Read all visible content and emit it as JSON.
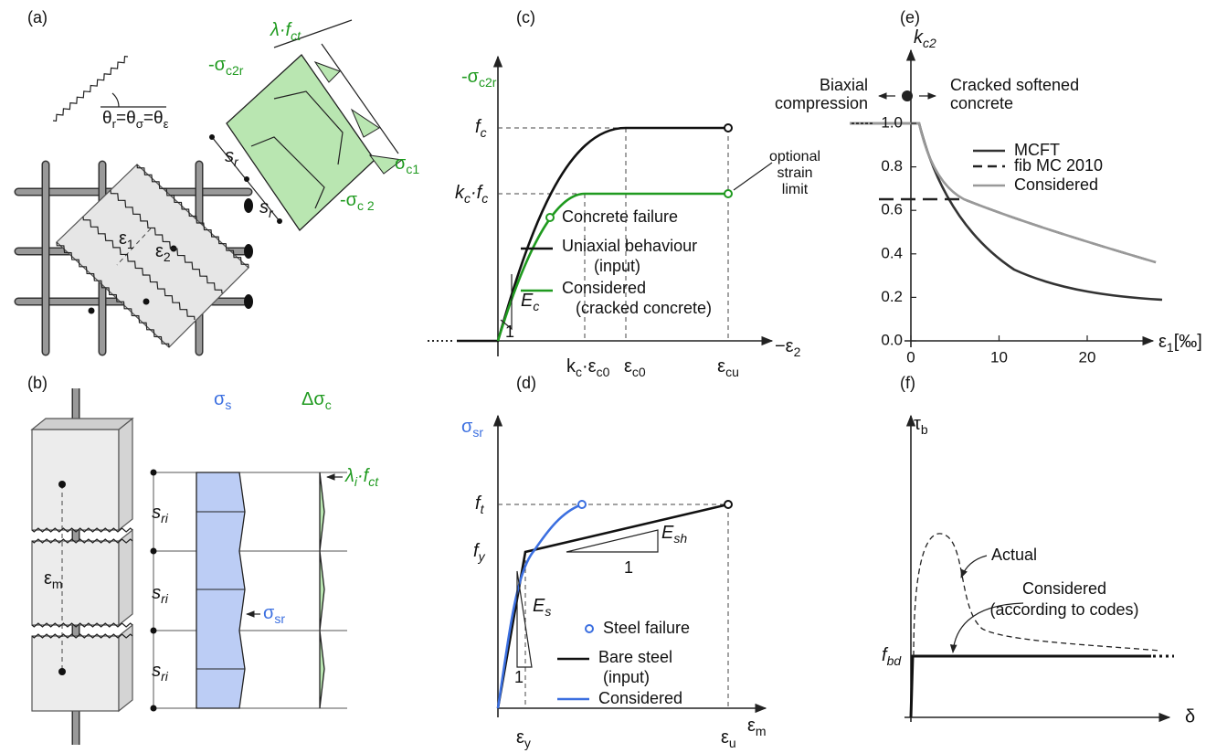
{
  "a": {
    "tag": "(a)",
    "theta": [
      "θ",
      "r",
      "=θ",
      "σ",
      "=θ",
      "ε"
    ],
    "lambda": [
      "λ·f",
      "ct"
    ],
    "s_c2r": [
      "-σ",
      "c2r"
    ],
    "s_c1": [
      "σ",
      "c1"
    ],
    "s_c2": [
      "-σ",
      "c 2"
    ],
    "sr1": [
      "s",
      "r"
    ],
    "sr2": [
      "s",
      "r"
    ],
    "e1": [
      "ε",
      "1"
    ],
    "e2": [
      "ε",
      "2"
    ]
  },
  "b": {
    "tag": "(b)",
    "sigma_s": [
      "σ",
      "s"
    ],
    "dsigma_c": [
      "Δσ",
      "c"
    ],
    "sri1": [
      "s",
      "ri"
    ],
    "sri2": [
      "s",
      "ri"
    ],
    "sri3": [
      "s",
      "ri"
    ],
    "em": [
      "ε",
      "m"
    ],
    "sigma_sr": [
      "σ",
      "sr"
    ],
    "lambda_i": [
      "λ",
      "i",
      "·f",
      "ct"
    ]
  },
  "c": {
    "tag": "(c)",
    "y_label": [
      "-σ",
      "c2r"
    ],
    "fc": [
      "f",
      "c"
    ],
    "kcfc": [
      "k",
      "c",
      "·f",
      "c"
    ],
    "x_label": [
      "−ε",
      "2"
    ],
    "kc_ec0": [
      "k",
      "c",
      "·ε",
      "c0"
    ],
    "ec0": [
      "ε",
      "c0"
    ],
    "ecu": [
      "ε",
      "cu"
    ],
    "note": [
      "optional",
      "strain",
      "limit"
    ],
    "Ec": [
      "E",
      "c"
    ],
    "one": "1",
    "legend": [
      "Concrete failure",
      "Uniaxial behaviour",
      "(input)",
      "Considered",
      "(cracked concrete)"
    ]
  },
  "d": {
    "tag": "(d)",
    "y_label": [
      "σ",
      "sr"
    ],
    "ft": [
      "f",
      "t"
    ],
    "fy": [
      "f",
      "y"
    ],
    "Esh": [
      "E",
      "sh"
    ],
    "one_a": "1",
    "Es": [
      "E",
      "s"
    ],
    "one_b": "1",
    "x_label": [
      "ε",
      "m"
    ],
    "ey": [
      "ε",
      "y"
    ],
    "eu": [
      "ε",
      "u"
    ],
    "legend": [
      "Steel failure",
      "Bare steel",
      "(input)",
      "Considered"
    ]
  },
  "e": {
    "tag": "(e)",
    "y_label": [
      "k",
      "c2"
    ],
    "left": [
      "Biaxial",
      "compression"
    ],
    "right": [
      "Cracked softened",
      "concrete"
    ],
    "yticks": [
      "1.0",
      "0.8",
      "0.6",
      "0.4",
      "0.2",
      "0.0"
    ],
    "xticks": [
      0,
      10,
      20
    ],
    "x_label": [
      "ε",
      "1",
      "[‰]"
    ],
    "legend": [
      "MCFT",
      "fib MC 2010",
      "Considered"
    ]
  },
  "f": {
    "tag": "(f)",
    "y_label": [
      "τ",
      "b"
    ],
    "actual": "Actual",
    "considered": [
      "Considered",
      "(according to codes)"
    ],
    "fbd": [
      "f",
      "bd"
    ],
    "x_label": "δ"
  }
}
